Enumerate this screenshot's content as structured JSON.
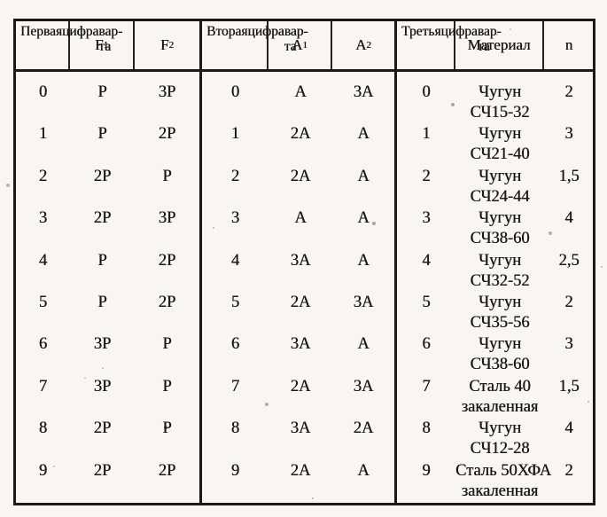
{
  "document": {
    "sections": [
      {
        "digit_header_lines": [
          "Первая",
          "цифра",
          "вар-та"
        ],
        "sub_headers": [
          {
            "base": "F",
            "sub": "1"
          },
          {
            "base": "F",
            "sub": "2"
          }
        ],
        "rows": [
          {
            "d": "0",
            "v1": "P",
            "v2": "3P"
          },
          {
            "d": "1",
            "v1": "P",
            "v2": "2P"
          },
          {
            "d": "2",
            "v1": "2P",
            "v2": "P"
          },
          {
            "d": "3",
            "v1": "2P",
            "v2": "3P"
          },
          {
            "d": "4",
            "v1": "P",
            "v2": "2P"
          },
          {
            "d": "5",
            "v1": "P",
            "v2": "2P"
          },
          {
            "d": "6",
            "v1": "3P",
            "v2": "P"
          },
          {
            "d": "7",
            "v1": "3P",
            "v2": "P"
          },
          {
            "d": "8",
            "v1": "2P",
            "v2": "P"
          },
          {
            "d": "9",
            "v1": "2P",
            "v2": "2P"
          }
        ]
      },
      {
        "digit_header_lines": [
          "Вторая",
          "цифра",
          "вар-та"
        ],
        "sub_headers": [
          {
            "base": "A",
            "sub": "1"
          },
          {
            "base": "A",
            "sub": "2"
          }
        ],
        "rows": [
          {
            "d": "0",
            "v1": "A",
            "v2": "3A"
          },
          {
            "d": "1",
            "v1": "2A",
            "v2": "A"
          },
          {
            "d": "2",
            "v1": "2A",
            "v2": "A"
          },
          {
            "d": "3",
            "v1": "A",
            "v2": "A"
          },
          {
            "d": "4",
            "v1": "3A",
            "v2": "A"
          },
          {
            "d": "5",
            "v1": "2A",
            "v2": "3A"
          },
          {
            "d": "6",
            "v1": "3A",
            "v2": "A"
          },
          {
            "d": "7",
            "v1": "2A",
            "v2": "3A"
          },
          {
            "d": "8",
            "v1": "3A",
            "v2": "2A"
          },
          {
            "d": "9",
            "v1": "2A",
            "v2": "A"
          }
        ]
      },
      {
        "digit_header_lines": [
          "Третья",
          "цифра",
          "вар-та"
        ],
        "material_header": "Материал",
        "n_header": "n",
        "rows": [
          {
            "d": "0",
            "m1": "Чугун",
            "m2": "СЧ15-32",
            "n": "2"
          },
          {
            "d": "1",
            "m1": "Чугун",
            "m2": "СЧ21-40",
            "n": "3"
          },
          {
            "d": "2",
            "m1": "Чугун",
            "m2": "СЧ24-44",
            "n": "1,5"
          },
          {
            "d": "3",
            "m1": "Чугун",
            "m2": "СЧ38-60",
            "n": "4"
          },
          {
            "d": "4",
            "m1": "Чугун",
            "m2": "СЧ32-52",
            "n": "2,5"
          },
          {
            "d": "5",
            "m1": "Чугун",
            "m2": "СЧ35-56",
            "n": "2"
          },
          {
            "d": "6",
            "m1": "Чугун",
            "m2": "СЧ38-60",
            "n": "3"
          },
          {
            "d": "7",
            "m1": "Сталь 40",
            "m2": "закаленная",
            "n": "1,5"
          },
          {
            "d": "8",
            "m1": "Чугун",
            "m2": "СЧ12-28",
            "n": "4"
          },
          {
            "d": "9",
            "m1": "Сталь 50ХФА",
            "m2": "закаленная",
            "n": "2"
          }
        ]
      }
    ]
  }
}
